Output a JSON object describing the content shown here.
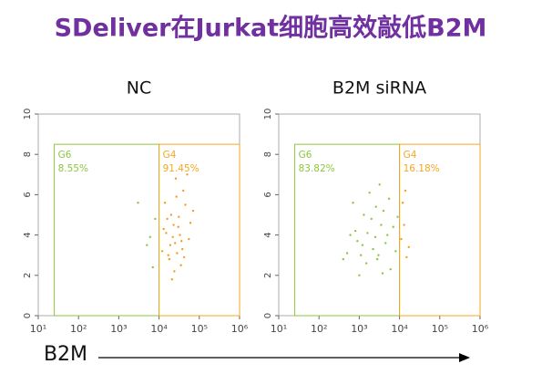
{
  "title": "SDeliver在Jurkat细胞高效敲低B2M",
  "xlabel": "B2M",
  "chart_data": [
    {
      "type": "scatter",
      "title": "NC",
      "xscale": "log",
      "xlim": [
        10,
        1000000
      ],
      "ylim": [
        0,
        10
      ],
      "xticks": [
        {
          "value": 10,
          "label": "10¹"
        },
        {
          "value": 100,
          "label": "10²"
        },
        {
          "value": 1000,
          "label": "10³"
        },
        {
          "value": 10000,
          "label": "10⁴"
        },
        {
          "value": 100000,
          "label": "10⁵"
        },
        {
          "value": 1000000,
          "label": "10⁶"
        }
      ],
      "yticks": [
        0,
        2,
        4,
        6,
        8,
        10
      ],
      "gates": [
        {
          "name": "G6",
          "percent": 8.55,
          "percent_label": "8.55%",
          "color": "#8dc63f",
          "xrange": [
            25,
            10000
          ],
          "yrange": [
            0,
            8.5
          ]
        },
        {
          "name": "G4",
          "percent": 91.45,
          "percent_label": "91.45%",
          "color": "#f5a623",
          "xrange": [
            10000,
            1000000
          ],
          "yrange": [
            0,
            8.5
          ]
        }
      ],
      "series": [
        {
          "color": "#f0a020",
          "x": [
            12000,
            15000,
            18000,
            20000,
            25000,
            30000,
            35000,
            40000,
            22000,
            16000,
            28000,
            45000,
            50000,
            33000,
            19000,
            24000,
            60000,
            14000,
            38000,
            26000,
            21000,
            31000,
            17000,
            42000,
            55000,
            13000,
            27000,
            36000,
            23000,
            70000
          ],
          "y": [
            3.2,
            4.1,
            2.8,
            5.0,
            3.6,
            4.4,
            2.5,
            6.2,
            3.9,
            4.8,
            3.1,
            5.5,
            7.0,
            4.0,
            3.5,
            2.2,
            4.6,
            5.6,
            3.3,
            6.8,
            1.8,
            4.9,
            3.0,
            2.9,
            3.8,
            4.3,
            5.9,
            3.7,
            4.5,
            5.2
          ]
        },
        {
          "color": "#8dc63f",
          "x": [
            5000,
            7000,
            8000,
            3000,
            6000
          ],
          "y": [
            3.5,
            2.4,
            4.8,
            5.6,
            3.9
          ]
        }
      ]
    },
    {
      "type": "scatter",
      "title": "B2M siRNA",
      "xscale": "log",
      "xlim": [
        10,
        1000000
      ],
      "ylim": [
        0,
        10
      ],
      "xticks": [
        {
          "value": 10,
          "label": "10¹"
        },
        {
          "value": 100,
          "label": "10²"
        },
        {
          "value": 1000,
          "label": "10³"
        },
        {
          "value": 10000,
          "label": "10⁴"
        },
        {
          "value": 100000,
          "label": "10⁵"
        },
        {
          "value": 1000000,
          "label": "10⁶"
        }
      ],
      "yticks": [
        0,
        2,
        4,
        6,
        8,
        10
      ],
      "gates": [
        {
          "name": "G6",
          "percent": 83.82,
          "percent_label": "83.82%",
          "color": "#8dc63f",
          "xrange": [
            25,
            10000
          ],
          "yrange": [
            0,
            8.5
          ]
        },
        {
          "name": "G4",
          "percent": 16.18,
          "percent_label": "16.18%",
          "color": "#f5a623",
          "xrange": [
            10000,
            1000000
          ],
          "yrange": [
            0,
            8.5
          ]
        }
      ],
      "series": [
        {
          "color": "#8dc63f",
          "x": [
            500,
            800,
            1200,
            1500,
            2000,
            2500,
            3000,
            4000,
            5000,
            6000,
            700,
            1000,
            1800,
            2200,
            3500,
            4500,
            600,
            900,
            1300,
            2800,
            3200,
            7000,
            8000,
            400,
            1600,
            2600,
            5500,
            1100,
            3800,
            9000
          ],
          "y": [
            3.1,
            4.2,
            3.5,
            2.6,
            4.8,
            3.9,
            3.0,
            5.2,
            4.0,
            2.3,
            5.6,
            2.0,
            6.1,
            3.3,
            4.5,
            3.6,
            4.0,
            3.7,
            5.0,
            2.8,
            6.5,
            4.4,
            3.2,
            2.8,
            4.1,
            5.4,
            5.8,
            3.0,
            2.1,
            4.9
          ]
        },
        {
          "color": "#f0a020",
          "x": [
            11000,
            13000,
            15000,
            12000,
            17000,
            14000
          ],
          "y": [
            3.8,
            4.5,
            2.9,
            5.6,
            3.4,
            6.2
          ]
        }
      ]
    }
  ]
}
